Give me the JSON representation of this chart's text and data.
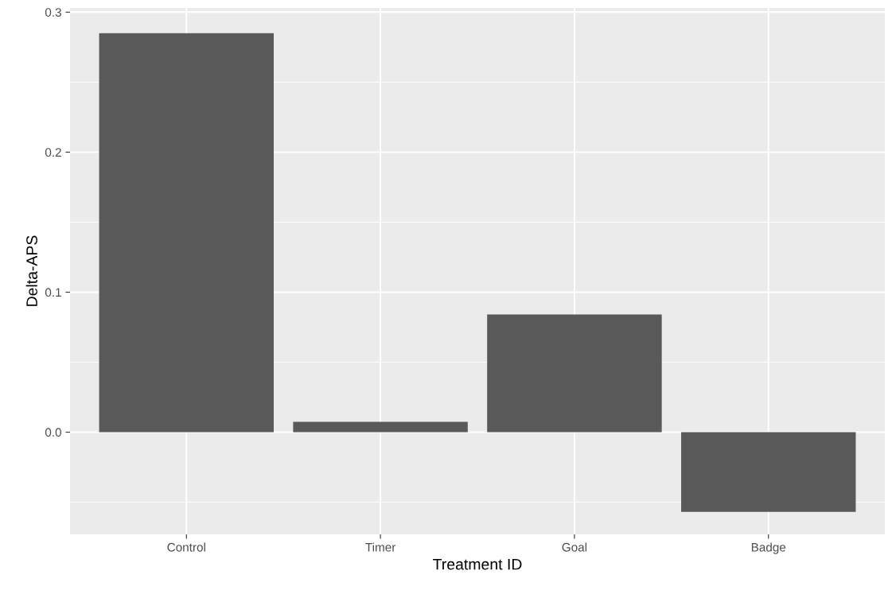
{
  "chart_data": {
    "type": "bar",
    "xlabel": "Treatment ID",
    "ylabel": "Delta-APS",
    "categories": [
      "Control",
      "Timer",
      "Goal",
      "Badge"
    ],
    "values": [
      0.285,
      0.0074,
      0.084,
      -0.057
    ],
    "color": "#595959",
    "ylim": [
      -0.073,
      0.303
    ],
    "yticks": [
      {
        "value": 0,
        "label": "0.0"
      },
      0.1,
      0.2,
      0.3
    ],
    "grid": true
  }
}
